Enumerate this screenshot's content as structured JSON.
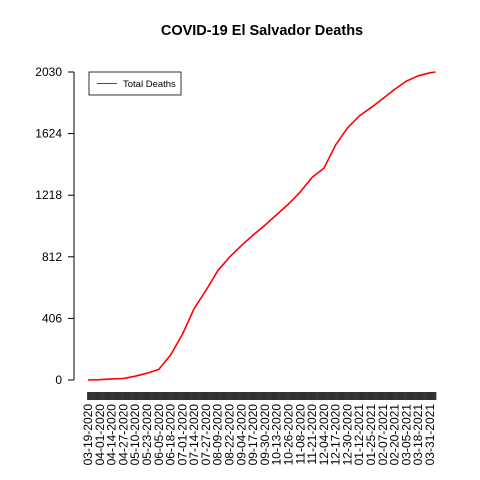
{
  "chart_data": {
    "type": "line",
    "title": "COVID-19 El Salvador Deaths",
    "xlabel": "",
    "ylabel": "",
    "ylim": [
      0,
      2030
    ],
    "y_ticks": [
      0,
      406,
      812,
      1218,
      1624,
      2030
    ],
    "x_tick_labels": [
      "03-19-2020",
      "04-01-2020",
      "04-14-2020",
      "04-27-2020",
      "05-10-2020",
      "05-23-2020",
      "06-05-2020",
      "06-18-2020",
      "07-01-2020",
      "07-14-2020",
      "07-27-2020",
      "08-09-2020",
      "08-22-2020",
      "09-04-2020",
      "09-17-2020",
      "09-30-2020",
      "10-13-2020",
      "10-26-2020",
      "11-08-2020",
      "11-21-2020",
      "12-04-2020",
      "12-17-2020",
      "12-30-2020",
      "01-12-2021",
      "01-25-2021",
      "02-07-2021",
      "02-20-2021",
      "03-05-2021",
      "03-18-2021",
      "03-31-2021"
    ],
    "legend": {
      "position": "top-left",
      "entries": [
        "Total Deaths"
      ]
    },
    "grid": false,
    "series": [
      {
        "name": "Total Deaths",
        "color": "#ff0000",
        "x": [
          "03-19-2020",
          "04-01-2020",
          "04-14-2020",
          "04-27-2020",
          "05-10-2020",
          "05-23-2020",
          "06-05-2020",
          "06-18-2020",
          "07-01-2020",
          "07-14-2020",
          "07-27-2020",
          "08-09-2020",
          "08-22-2020",
          "09-04-2020",
          "09-17-2020",
          "09-30-2020",
          "10-13-2020",
          "10-26-2020",
          "11-08-2020",
          "11-21-2020",
          "12-04-2020",
          "12-17-2020",
          "12-30-2020",
          "01-12-2021",
          "01-25-2021",
          "02-07-2021",
          "02-20-2021",
          "03-05-2021",
          "03-18-2021",
          "03-31-2021",
          "04-06-2021"
        ],
        "values": [
          0,
          2,
          7,
          10,
          25,
          45,
          70,
          165,
          300,
          470,
          590,
          720,
          810,
          885,
          955,
          1020,
          1090,
          1160,
          1240,
          1335,
          1395,
          1550,
          1660,
          1740,
          1795,
          1855,
          1915,
          1970,
          2005,
          2025,
          2030
        ]
      }
    ]
  }
}
